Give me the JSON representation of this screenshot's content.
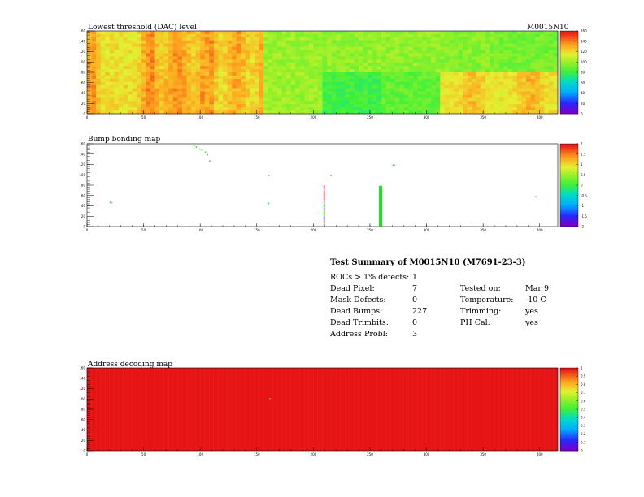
{
  "module": "M0015N10",
  "panels": [
    {
      "id": "threshold",
      "title": "Lowest threshold (DAC) level",
      "module_label": "M0015N10",
      "x_ticks": [
        "0",
        "50",
        "100",
        "150",
        "200",
        "250",
        "300",
        "350",
        "400"
      ],
      "y_ticks": [
        "0",
        "20",
        "40",
        "60",
        "80",
        "100",
        "120",
        "140",
        "160"
      ],
      "scale_ticks": [
        "160",
        "140",
        "120",
        "100",
        "80",
        "60",
        "40",
        "20",
        "0"
      ]
    },
    {
      "id": "bump",
      "title": "Bump bonding map",
      "x_ticks": [
        "0",
        "50",
        "100",
        "150",
        "200",
        "250",
        "300",
        "350",
        "400"
      ],
      "y_ticks": [
        "0",
        "20",
        "40",
        "60",
        "80",
        "100",
        "120",
        "140",
        "160"
      ],
      "scale_ticks": [
        "2",
        "1.5",
        "1",
        "0.5",
        "0",
        "-0.5",
        "-1",
        "-1.5",
        "-2"
      ]
    },
    {
      "id": "address",
      "title": "Address decoding map",
      "x_ticks": [
        "0",
        "50",
        "100",
        "150",
        "200",
        "250",
        "300",
        "350",
        "400"
      ],
      "y_ticks": [
        "0",
        "20",
        "40",
        "60",
        "80",
        "100",
        "120",
        "140",
        "160"
      ],
      "scale_ticks": [
        "1",
        "0.9",
        "0.8",
        "0.7",
        "0.6",
        "0.5",
        "0.4",
        "0.3",
        "0.2",
        "0.1",
        "0"
      ]
    }
  ],
  "summary": {
    "title": "Test Summary of M0015N10 (M7691-23-3)",
    "rows": [
      {
        "label": "ROCs > 1% defects:",
        "value": "1",
        "label2": "",
        "value2": ""
      },
      {
        "label": "Dead Pixel:",
        "value": "7",
        "label2": "Tested on:",
        "value2": "Mar 9"
      },
      {
        "label": "Mask Defects:",
        "value": "0",
        "label2": "Temperature:",
        "value2": "-10 C"
      },
      {
        "label": "Dead Bumps:",
        "value": "227",
        "label2": "Trimming:",
        "value2": "yes"
      },
      {
        "label": "Dead Trimbits:",
        "value": "0",
        "label2": "PH Cal:",
        "value2": "yes"
      },
      {
        "label": "Address Probl:",
        "value": "3",
        "label2": "",
        "value2": ""
      }
    ]
  },
  "chart_data": [
    {
      "type": "heatmap",
      "title": "Lowest threshold (DAC) level",
      "x_range": [
        0,
        416
      ],
      "y_range": [
        0,
        160
      ],
      "z_range": [
        0,
        160
      ],
      "roc_grid": {
        "cols": 8,
        "rows": 2
      },
      "roc_levels_top": [
        118,
        122,
        120,
        100,
        98,
        98,
        96,
        92
      ],
      "roc_levels_bottom": [
        120,
        124,
        118,
        100,
        80,
        88,
        116,
        118
      ]
    },
    {
      "type": "heatmap",
      "title": "Bump bonding map",
      "x_range": [
        0,
        416
      ],
      "y_range": [
        0,
        160
      ],
      "z_range": [
        -2,
        2
      ],
      "dead_bumps_total": 227
    },
    {
      "type": "heatmap",
      "title": "Address decoding map",
      "x_range": [
        0,
        416
      ],
      "y_range": [
        0,
        160
      ],
      "z_range": [
        0,
        1
      ],
      "uniform_value": 1
    }
  ]
}
